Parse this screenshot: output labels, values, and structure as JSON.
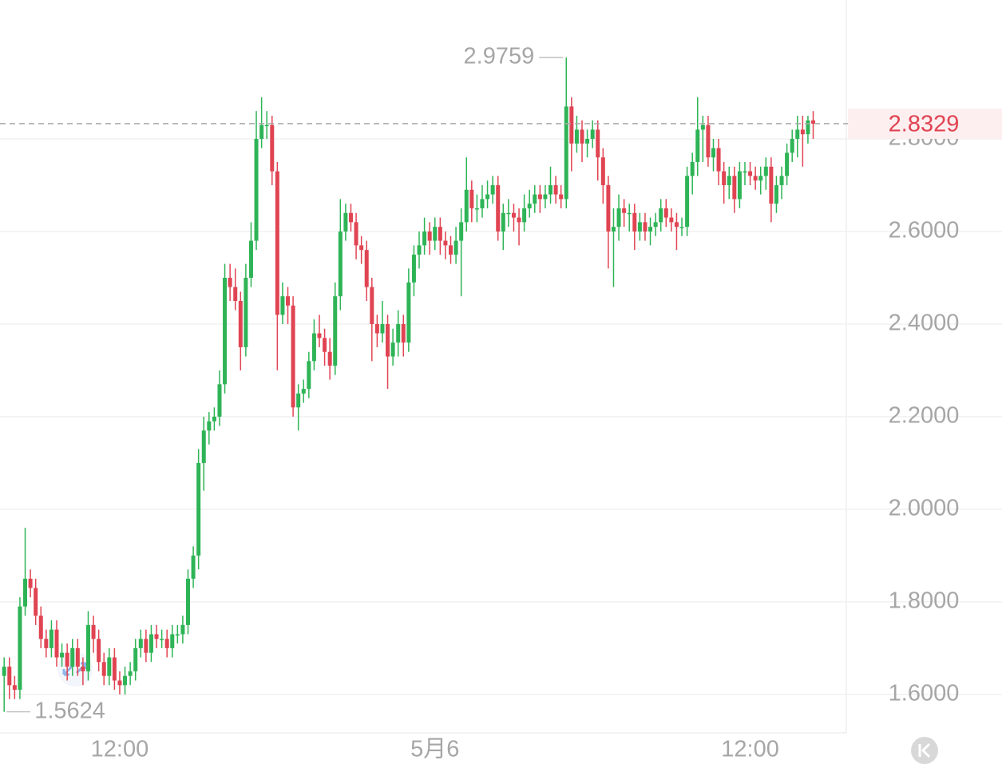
{
  "chart_data": {
    "type": "candlestick",
    "x": [
      null,
      null,
      null,
      null,
      null,
      null,
      null,
      null,
      null,
      null,
      null,
      null,
      null,
      null,
      null,
      null,
      null,
      null,
      null,
      null,
      null,
      null,
      "12:00",
      null,
      null,
      null,
      null,
      null,
      null,
      null,
      null,
      null,
      null,
      null,
      null,
      null,
      null,
      null,
      null,
      null,
      null,
      null,
      null,
      null,
      null,
      null,
      null,
      null,
      null,
      null,
      null,
      null,
      null,
      null,
      null,
      null,
      null,
      null,
      null,
      null,
      null,
      null,
      null,
      null,
      null,
      null,
      null,
      null,
      null,
      null,
      null,
      null,
      null,
      null,
      null,
      null,
      null,
      null,
      null,
      null,
      null,
      null,
      "5月6",
      null,
      null,
      null,
      null,
      null,
      null,
      null,
      null,
      null,
      null,
      null,
      null,
      null,
      null,
      null,
      null,
      null,
      null,
      null,
      null,
      null,
      null,
      null,
      null,
      null,
      null,
      null,
      null,
      null,
      null,
      null,
      null,
      null,
      null,
      null,
      null,
      null,
      null,
      null,
      null,
      null,
      null,
      null,
      null,
      null,
      null,
      null,
      null,
      null,
      null,
      null,
      null,
      null,
      null,
      null,
      null,
      null,
      null,
      null,
      "12:00",
      null,
      null,
      null,
      null,
      null,
      null,
      null,
      null,
      null,
      null,
      null,
      null
    ],
    "open": [
      1.64,
      1.66,
      1.62,
      1.61,
      1.79,
      1.85,
      1.83,
      1.77,
      1.72,
      1.7,
      1.74,
      1.68,
      1.69,
      1.66,
      1.7,
      1.66,
      1.65,
      1.75,
      1.72,
      1.67,
      1.64,
      1.68,
      1.63,
      1.62,
      1.64,
      1.65,
      1.7,
      1.72,
      1.69,
      1.73,
      1.72,
      1.72,
      1.7,
      1.73,
      1.73,
      1.75,
      1.85,
      1.9,
      2.1,
      2.17,
      2.19,
      2.2,
      2.27,
      2.5,
      2.48,
      2.45,
      2.35,
      2.5,
      2.58,
      2.8,
      2.83,
      2.83,
      2.73,
      2.42,
      2.46,
      2.44,
      2.22,
      2.25,
      2.26,
      2.32,
      2.38,
      2.37,
      2.34,
      2.31,
      2.46,
      2.6,
      2.64,
      2.62,
      2.57,
      2.56,
      2.48,
      2.4,
      2.38,
      2.4,
      2.33,
      2.36,
      2.4,
      2.36,
      2.49,
      2.55,
      2.57,
      2.6,
      2.58,
      2.61,
      2.58,
      2.57,
      2.55,
      2.58,
      2.62,
      2.69,
      2.65,
      2.65,
      2.67,
      2.68,
      2.7,
      2.6,
      2.64,
      2.64,
      2.63,
      2.62,
      2.65,
      2.66,
      2.68,
      2.67,
      2.68,
      2.7,
      2.68,
      2.67,
      2.87,
      2.79,
      2.82,
      2.79,
      2.8,
      2.82,
      2.76,
      2.7,
      2.6,
      2.61,
      2.65,
      2.64,
      2.64,
      2.6,
      2.62,
      2.6,
      2.61,
      2.62,
      2.65,
      2.63,
      2.62,
      2.61,
      2.61,
      2.72,
      2.75,
      2.82,
      2.83,
      2.76,
      2.78,
      2.73,
      2.7,
      2.72,
      2.67,
      2.73,
      2.73,
      2.72,
      2.71,
      2.72,
      2.74,
      2.66,
      2.7,
      2.72,
      2.77,
      2.8,
      2.82,
      2.81,
      2.84
    ],
    "high": [
      1.68,
      1.68,
      1.64,
      1.81,
      1.96,
      1.87,
      1.85,
      1.79,
      1.74,
      1.76,
      1.76,
      1.71,
      1.71,
      1.72,
      1.72,
      1.68,
      1.78,
      1.77,
      1.74,
      1.69,
      1.7,
      1.7,
      1.65,
      1.66,
      1.67,
      1.72,
      1.74,
      1.74,
      1.75,
      1.75,
      1.74,
      1.74,
      1.75,
      1.75,
      1.77,
      1.87,
      1.92,
      2.13,
      2.2,
      2.21,
      2.22,
      2.3,
      2.53,
      2.53,
      2.52,
      2.47,
      2.53,
      2.62,
      2.86,
      2.89,
      2.86,
      2.85,
      2.75,
      2.49,
      2.48,
      2.46,
      2.27,
      2.28,
      2.34,
      2.41,
      2.42,
      2.39,
      2.37,
      2.49,
      2.67,
      2.66,
      2.66,
      2.64,
      2.59,
      2.58,
      2.5,
      2.42,
      2.45,
      2.42,
      2.39,
      2.43,
      2.42,
      2.52,
      2.57,
      2.6,
      2.63,
      2.62,
      2.63,
      2.63,
      2.6,
      2.59,
      2.61,
      2.65,
      2.76,
      2.71,
      2.68,
      2.7,
      2.71,
      2.72,
      2.72,
      2.66,
      2.67,
      2.66,
      2.65,
      2.68,
      2.69,
      2.7,
      2.7,
      2.7,
      2.74,
      2.72,
      2.7,
      2.9759,
      2.89,
      2.85,
      2.84,
      2.82,
      2.84,
      2.84,
      2.78,
      2.72,
      2.65,
      2.68,
      2.67,
      2.66,
      2.66,
      2.64,
      2.64,
      2.63,
      2.64,
      2.67,
      2.67,
      2.65,
      2.64,
      2.63,
      2.74,
      2.77,
      2.89,
      2.85,
      2.85,
      2.8,
      2.8,
      2.75,
      2.74,
      2.74,
      2.75,
      2.75,
      2.75,
      2.74,
      2.74,
      2.76,
      2.76,
      2.72,
      2.74,
      2.79,
      2.82,
      2.85,
      2.85,
      2.85,
      2.86
    ],
    "low": [
      1.5624,
      1.59,
      1.59,
      1.59,
      1.77,
      1.81,
      1.75,
      1.7,
      1.68,
      1.68,
      1.66,
      1.66,
      1.63,
      1.64,
      1.64,
      1.62,
      1.63,
      1.69,
      1.65,
      1.62,
      1.62,
      1.61,
      1.6,
      1.6,
      1.62,
      1.63,
      1.68,
      1.67,
      1.67,
      1.7,
      1.7,
      1.68,
      1.68,
      1.71,
      1.71,
      1.73,
      1.83,
      1.87,
      2.04,
      2.14,
      2.17,
      2.18,
      2.25,
      2.45,
      2.43,
      2.3,
      2.33,
      2.48,
      2.56,
      2.78,
      2.8,
      2.7,
      2.3,
      2.4,
      2.4,
      2.2,
      2.17,
      2.23,
      2.24,
      2.3,
      2.35,
      2.31,
      2.28,
      2.29,
      2.43,
      2.58,
      2.6,
      2.54,
      2.53,
      2.45,
      2.32,
      2.35,
      2.36,
      2.26,
      2.31,
      2.33,
      2.33,
      2.34,
      2.46,
      2.52,
      2.55,
      2.55,
      2.56,
      2.55,
      2.54,
      2.53,
      2.53,
      2.46,
      2.6,
      2.62,
      2.62,
      2.63,
      2.65,
      2.66,
      2.58,
      2.56,
      2.61,
      2.6,
      2.57,
      2.6,
      2.63,
      2.64,
      2.64,
      2.65,
      2.66,
      2.66,
      2.65,
      2.65,
      2.73,
      2.77,
      2.75,
      2.76,
      2.78,
      2.71,
      2.66,
      2.52,
      2.48,
      2.58,
      2.61,
      2.6,
      2.56,
      2.58,
      2.58,
      2.57,
      2.59,
      2.6,
      2.61,
      2.6,
      2.56,
      2.59,
      2.59,
      2.68,
      2.72,
      2.75,
      2.74,
      2.73,
      2.7,
      2.66,
      2.67,
      2.64,
      2.65,
      2.7,
      2.7,
      2.69,
      2.68,
      2.69,
      2.62,
      2.64,
      2.67,
      2.7,
      2.75,
      2.76,
      2.74,
      2.79,
      2.8
    ],
    "close": [
      1.66,
      1.62,
      1.61,
      1.79,
      1.85,
      1.83,
      1.77,
      1.72,
      1.7,
      1.74,
      1.68,
      1.69,
      1.66,
      1.7,
      1.66,
      1.65,
      1.75,
      1.72,
      1.67,
      1.64,
      1.68,
      1.63,
      1.62,
      1.64,
      1.65,
      1.7,
      1.72,
      1.69,
      1.73,
      1.72,
      1.72,
      1.7,
      1.73,
      1.73,
      1.75,
      1.85,
      1.9,
      2.1,
      2.17,
      2.19,
      2.2,
      2.27,
      2.5,
      2.48,
      2.45,
      2.35,
      2.5,
      2.58,
      2.8,
      2.83,
      2.83,
      2.73,
      2.42,
      2.46,
      2.44,
      2.22,
      2.25,
      2.26,
      2.32,
      2.38,
      2.37,
      2.34,
      2.31,
      2.46,
      2.6,
      2.64,
      2.62,
      2.57,
      2.56,
      2.48,
      2.4,
      2.38,
      2.4,
      2.33,
      2.36,
      2.4,
      2.36,
      2.49,
      2.55,
      2.57,
      2.6,
      2.58,
      2.61,
      2.58,
      2.57,
      2.55,
      2.58,
      2.62,
      2.69,
      2.65,
      2.65,
      2.67,
      2.68,
      2.7,
      2.6,
      2.64,
      2.64,
      2.63,
      2.62,
      2.65,
      2.66,
      2.68,
      2.67,
      2.68,
      2.7,
      2.68,
      2.67,
      2.87,
      2.79,
      2.82,
      2.79,
      2.8,
      2.82,
      2.76,
      2.7,
      2.6,
      2.61,
      2.65,
      2.64,
      2.64,
      2.6,
      2.62,
      2.6,
      2.61,
      2.62,
      2.65,
      2.63,
      2.62,
      2.61,
      2.61,
      2.72,
      2.75,
      2.82,
      2.83,
      2.76,
      2.78,
      2.73,
      2.7,
      2.72,
      2.67,
      2.73,
      2.73,
      2.72,
      2.71,
      2.72,
      2.74,
      2.66,
      2.7,
      2.72,
      2.77,
      2.8,
      2.82,
      2.81,
      2.84,
      2.8329
    ],
    "up_color": "#2eb456",
    "down_color": "#e04452",
    "ylim": [
      1.517,
      3.1
    ],
    "yticks": [
      {
        "value": 1.6,
        "label": "1.6000"
      },
      {
        "value": 1.8,
        "label": "1.8000"
      },
      {
        "value": 2.0,
        "label": "2.0000"
      },
      {
        "value": 2.2,
        "label": "2.2000"
      },
      {
        "value": 2.4,
        "label": "2.4000"
      },
      {
        "value": 2.6,
        "label": "2.6000"
      },
      {
        "value": 2.8,
        "label": "2.8000"
      }
    ],
    "grid": true
  }
}
